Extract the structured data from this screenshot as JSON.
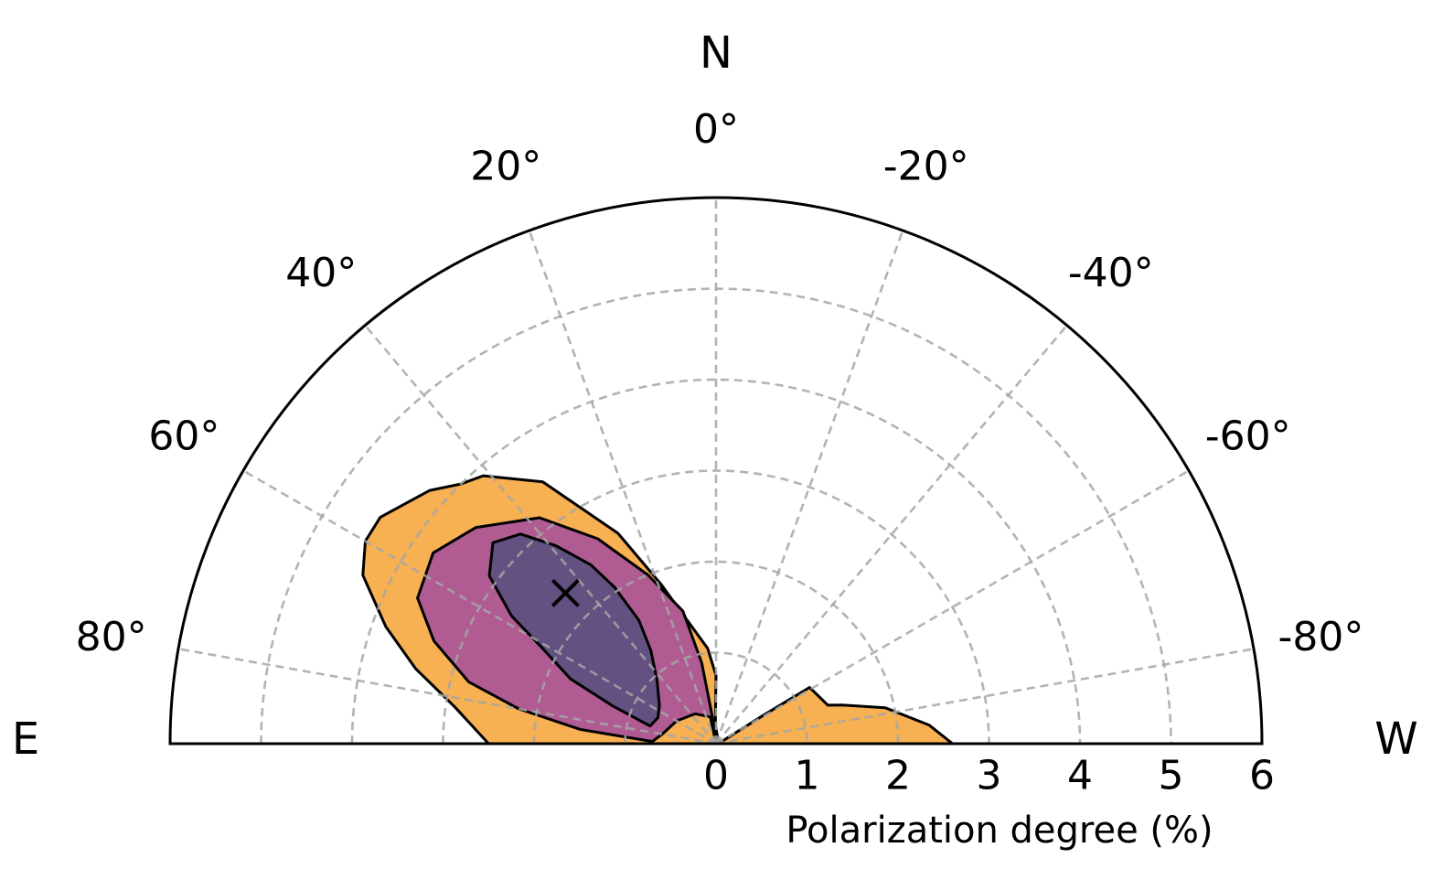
{
  "chart_data": {
    "type": "polar-contour",
    "title": "",
    "r_axis": {
      "label": "Polarization degree (%)",
      "range": [
        0,
        6
      ],
      "ticks": [
        0,
        1,
        2,
        3,
        4,
        5,
        6
      ],
      "tick_labels": [
        "0",
        "1",
        "2",
        "3",
        "4",
        "5",
        "6"
      ]
    },
    "theta_axis": {
      "range_deg": [
        -90,
        90
      ],
      "zero": "N",
      "positive_direction": "E",
      "ticks": [
        80,
        60,
        40,
        20,
        0,
        -20,
        -40,
        -60,
        -80
      ],
      "tick_labels": [
        "80°",
        "60°",
        "40°",
        "20°",
        "0°",
        "-20°",
        "-40°",
        "-60°",
        "-80°"
      ]
    },
    "compass": {
      "north": "N",
      "east": "E",
      "west": "W"
    },
    "grid": true,
    "best_fit": {
      "r": 2.34,
      "theta_deg": 45
    },
    "contours": [
      {
        "level": "outer",
        "color": "#f7b052",
        "points": [
          [
            0.03,
            -85
          ],
          [
            0.6,
            -59
          ],
          [
            1.2,
            -59
          ],
          [
            1.3,
            -71
          ],
          [
            1.45,
            -73
          ],
          [
            1.9,
            -78
          ],
          [
            2.35,
            -85
          ],
          [
            2.6,
            -90
          ],
          [
            2.5,
            90
          ],
          [
            2.9,
            82
          ],
          [
            3.4,
            76
          ],
          [
            3.85,
            70.5
          ],
          [
            4.3,
            64.5
          ],
          [
            4.45,
            60
          ],
          [
            4.45,
            56
          ],
          [
            4.2,
            48.5
          ],
          [
            4.0,
            44.5
          ],
          [
            3.9,
            41
          ],
          [
            3.45,
            33.5
          ],
          [
            2.55,
            25
          ],
          [
            1.85,
            19
          ],
          [
            1.05,
            5
          ],
          [
            0.75,
            0
          ],
          [
            0.5,
            0.5
          ],
          [
            0.2,
            2
          ]
        ]
      },
      {
        "level": "middle",
        "color": "#b05c92",
        "points": [
          [
            0.0,
            0
          ],
          [
            0.3,
            12
          ],
          [
            0.4,
            35
          ],
          [
            0.5,
            60
          ],
          [
            0.6,
            80
          ],
          [
            0.7,
            88
          ],
          [
            1.5,
            84
          ],
          [
            2.2,
            80
          ],
          [
            2.8,
            76
          ],
          [
            3.3,
            70
          ],
          [
            3.65,
            64
          ],
          [
            3.75,
            56
          ],
          [
            3.55,
            48
          ],
          [
            3.15,
            38
          ],
          [
            2.6,
            30
          ],
          [
            2.0,
            22
          ],
          [
            1.5,
            14
          ],
          [
            0.9,
            10
          ],
          [
            0.2,
            6
          ]
        ]
      },
      {
        "level": "inner",
        "color": "#625181",
        "points": [
          [
            0.75,
            75
          ],
          [
            1.2,
            70
          ],
          [
            1.75,
            66
          ],
          [
            2.2,
            61
          ],
          [
            2.65,
            58
          ],
          [
            3.1,
            53.5
          ],
          [
            3.3,
            48
          ],
          [
            3.15,
            43
          ],
          [
            2.8,
            39
          ],
          [
            2.4,
            35
          ],
          [
            2.05,
            33
          ],
          [
            1.6,
            32
          ],
          [
            1.25,
            35
          ],
          [
            0.95,
            43
          ],
          [
            0.75,
            56
          ],
          [
            0.7,
            66
          ]
        ]
      }
    ]
  }
}
